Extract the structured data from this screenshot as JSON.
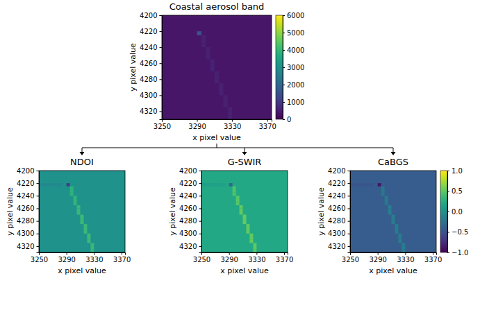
{
  "chart_data": [
    {
      "type": "heatmap",
      "title": "Coastal aerosol band",
      "x_label": "x pixel value",
      "y_label": "y pixel value",
      "xlim": [
        3250,
        3375
      ],
      "ylim": [
        4200,
        4330
      ],
      "xticks": [
        3250,
        3290,
        3330,
        3370
      ],
      "yticks": [
        4200,
        4220,
        4240,
        4260,
        4280,
        4300,
        4320
      ],
      "cell_size": [
        5,
        5
      ],
      "background": 350,
      "cells": [
        [
          3290,
          4220,
          1500
        ],
        [
          3295,
          4225,
          550
        ],
        [
          3295,
          4230,
          550
        ],
        [
          3295,
          4235,
          550
        ],
        [
          3300,
          4240,
          550
        ],
        [
          3300,
          4245,
          550
        ],
        [
          3300,
          4250,
          550
        ],
        [
          3305,
          4255,
          550
        ],
        [
          3305,
          4260,
          550
        ],
        [
          3305,
          4265,
          550
        ],
        [
          3310,
          4270,
          550
        ],
        [
          3310,
          4275,
          550
        ],
        [
          3310,
          4280,
          550
        ],
        [
          3315,
          4285,
          550
        ],
        [
          3315,
          4290,
          550
        ],
        [
          3315,
          4295,
          550
        ],
        [
          3320,
          4300,
          550
        ],
        [
          3320,
          4305,
          550
        ],
        [
          3320,
          4310,
          550
        ],
        [
          3325,
          4315,
          550
        ],
        [
          3325,
          4320,
          550
        ],
        [
          3325,
          4325,
          550
        ]
      ],
      "color_range": [
        0,
        6000
      ],
      "colorbar_ticks": [
        0,
        1000,
        2000,
        3000,
        4000,
        5000,
        6000
      ]
    },
    {
      "type": "heatmap",
      "title": "NDOI",
      "x_label": "x pixel value",
      "y_label": "y pixel value",
      "xlim": [
        3250,
        3375
      ],
      "ylim": [
        4200,
        4330
      ],
      "xticks": [
        3250,
        3290,
        3330,
        3370
      ],
      "yticks": [
        4200,
        4220,
        4240,
        4260,
        4280,
        4300,
        4320
      ],
      "cell_size": [
        5,
        5
      ],
      "background": 0.02,
      "cells": [
        [
          3250,
          4220,
          -0.06
        ],
        [
          3255,
          4220,
          -0.06
        ],
        [
          3260,
          4220,
          -0.06
        ],
        [
          3265,
          4220,
          -0.06
        ],
        [
          3270,
          4220,
          -0.06
        ],
        [
          3275,
          4220,
          -0.06
        ],
        [
          3280,
          4220,
          -0.06
        ],
        [
          3290,
          4220,
          -0.65
        ],
        [
          3295,
          4225,
          0.3
        ],
        [
          3295,
          4230,
          0.3
        ],
        [
          3295,
          4235,
          0.3
        ],
        [
          3300,
          4240,
          0.32
        ],
        [
          3300,
          4245,
          0.32
        ],
        [
          3300,
          4250,
          0.32
        ],
        [
          3305,
          4255,
          0.34
        ],
        [
          3305,
          4260,
          0.34
        ],
        [
          3305,
          4265,
          0.34
        ],
        [
          3310,
          4270,
          0.36
        ],
        [
          3310,
          4275,
          0.36
        ],
        [
          3310,
          4280,
          0.36
        ],
        [
          3315,
          4285,
          0.36
        ],
        [
          3315,
          4290,
          0.36
        ],
        [
          3315,
          4295,
          0.36
        ],
        [
          3320,
          4300,
          0.36
        ],
        [
          3320,
          4305,
          0.36
        ],
        [
          3320,
          4310,
          0.36
        ],
        [
          3325,
          4315,
          0.34
        ],
        [
          3325,
          4320,
          0.34
        ],
        [
          3325,
          4325,
          0.34
        ]
      ],
      "color_range": [
        -1,
        1
      ]
    },
    {
      "type": "heatmap",
      "title": "G-SWIR",
      "x_label": "x pixel value",
      "y_label": "y pixel value",
      "xlim": [
        3250,
        3375
      ],
      "ylim": [
        4200,
        4330
      ],
      "xticks": [
        3250,
        3290,
        3330,
        3370
      ],
      "yticks": [
        4200,
        4220,
        4240,
        4260,
        4280,
        4300,
        4320
      ],
      "cell_size": [
        5,
        5
      ],
      "background": 0.2,
      "cells": [
        [
          3250,
          4220,
          0.12
        ],
        [
          3255,
          4220,
          0.12
        ],
        [
          3260,
          4220,
          0.12
        ],
        [
          3265,
          4220,
          0.12
        ],
        [
          3270,
          4220,
          0.12
        ],
        [
          3275,
          4220,
          0.12
        ],
        [
          3280,
          4220,
          0.12
        ],
        [
          3290,
          4220,
          -0.35
        ],
        [
          3295,
          4225,
          0.45
        ],
        [
          3295,
          4230,
          0.45
        ],
        [
          3295,
          4235,
          0.45
        ],
        [
          3300,
          4240,
          0.48
        ],
        [
          3300,
          4245,
          0.48
        ],
        [
          3300,
          4250,
          0.48
        ],
        [
          3305,
          4255,
          0.5
        ],
        [
          3305,
          4260,
          0.5
        ],
        [
          3305,
          4265,
          0.5
        ],
        [
          3310,
          4270,
          0.52
        ],
        [
          3310,
          4275,
          0.52
        ],
        [
          3310,
          4280,
          0.52
        ],
        [
          3315,
          4285,
          0.52
        ],
        [
          3315,
          4290,
          0.52
        ],
        [
          3315,
          4295,
          0.52
        ],
        [
          3320,
          4300,
          0.52
        ],
        [
          3320,
          4305,
          0.52
        ],
        [
          3320,
          4310,
          0.52
        ],
        [
          3325,
          4315,
          0.5
        ],
        [
          3325,
          4320,
          0.5
        ],
        [
          3325,
          4325,
          0.5
        ]
      ],
      "color_range": [
        -1,
        1
      ]
    },
    {
      "type": "heatmap",
      "title": "CaBGS",
      "x_label": "x pixel value",
      "y_label": "y pixel value",
      "xlim": [
        3250,
        3375
      ],
      "ylim": [
        4200,
        4330
      ],
      "xticks": [
        3250,
        3290,
        3330,
        3370
      ],
      "yticks": [
        4200,
        4220,
        4240,
        4260,
        4280,
        4300,
        4320
      ],
      "cell_size": [
        5,
        5
      ],
      "background": -0.42,
      "cells": [
        [
          3250,
          4220,
          -0.47
        ],
        [
          3255,
          4220,
          -0.47
        ],
        [
          3260,
          4220,
          -0.47
        ],
        [
          3265,
          4220,
          -0.47
        ],
        [
          3270,
          4220,
          -0.47
        ],
        [
          3275,
          4220,
          -0.47
        ],
        [
          3280,
          4220,
          -0.47
        ],
        [
          3290,
          4220,
          -0.9
        ],
        [
          3295,
          4225,
          -0.2
        ],
        [
          3295,
          4230,
          -0.2
        ],
        [
          3295,
          4235,
          -0.2
        ],
        [
          3300,
          4240,
          -0.18
        ],
        [
          3300,
          4245,
          -0.18
        ],
        [
          3300,
          4250,
          -0.18
        ],
        [
          3305,
          4255,
          -0.16
        ],
        [
          3305,
          4260,
          -0.16
        ],
        [
          3305,
          4265,
          -0.16
        ],
        [
          3310,
          4270,
          -0.15
        ],
        [
          3310,
          4275,
          -0.15
        ],
        [
          3310,
          4280,
          -0.15
        ],
        [
          3315,
          4285,
          -0.15
        ],
        [
          3315,
          4290,
          -0.15
        ],
        [
          3315,
          4295,
          -0.15
        ],
        [
          3320,
          4300,
          -0.15
        ],
        [
          3320,
          4305,
          -0.15
        ],
        [
          3320,
          4310,
          -0.15
        ],
        [
          3325,
          4315,
          -0.17
        ],
        [
          3325,
          4320,
          -0.17
        ],
        [
          3325,
          4325,
          -0.17
        ]
      ],
      "color_range": [
        -1,
        1
      ],
      "colorbar_ticks": [
        {
          "value": -1,
          "label": "−1.0"
        },
        {
          "value": -0.5,
          "label": "−0.5"
        },
        {
          "value": 0,
          "label": "0.0"
        },
        {
          "value": 0.5,
          "label": "0.5"
        },
        {
          "value": 1,
          "label": "1.0"
        }
      ]
    }
  ]
}
